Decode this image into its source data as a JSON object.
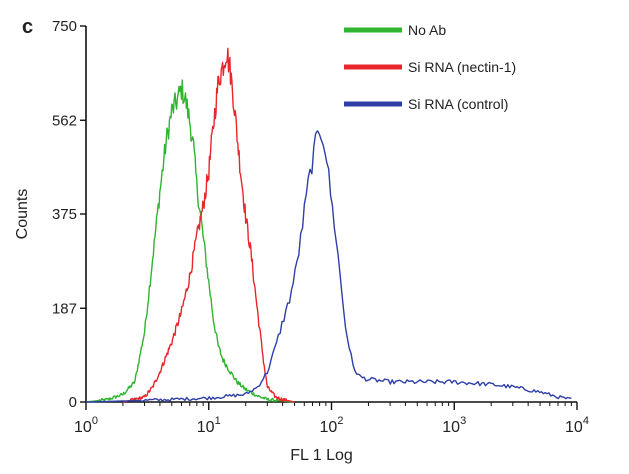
{
  "panel_label": "c",
  "chart_data": {
    "type": "line",
    "title": "",
    "xlabel": "FL 1 Log",
    "ylabel": "Counts",
    "x_scale": "log",
    "xlim": [
      1,
      10000
    ],
    "ylim": [
      0,
      750
    ],
    "x_ticks": [
      {
        "value": 1,
        "base": "10",
        "exp": "0"
      },
      {
        "value": 10,
        "base": "10",
        "exp": "1"
      },
      {
        "value": 100,
        "base": "10",
        "exp": "2"
      },
      {
        "value": 1000,
        "base": "10",
        "exp": "3"
      },
      {
        "value": 10000,
        "base": "10",
        "exp": "4"
      }
    ],
    "y_ticks": [
      0,
      187,
      375,
      562,
      750
    ],
    "legend_position": "top-right",
    "grid": false,
    "series": [
      {
        "name": "No Ab",
        "color": "#2fb52f",
        "x": [
          1,
          1.5,
          2,
          2.5,
          3,
          3.5,
          4,
          4.5,
          5,
          5.5,
          6,
          6.5,
          7,
          7.5,
          8,
          9,
          10,
          11,
          12,
          13,
          15,
          17,
          20,
          25,
          30,
          40,
          50
        ],
        "y": [
          0,
          5,
          15,
          40,
          140,
          290,
          420,
          520,
          580,
          600,
          625,
          600,
          560,
          510,
          430,
          330,
          240,
          160,
          110,
          85,
          60,
          40,
          25,
          12,
          5,
          2,
          0
        ]
      },
      {
        "name": "Si RNA (nectin-1)",
        "color": "#e8262c",
        "x": [
          2,
          2.5,
          3,
          3.5,
          4,
          5,
          6,
          7,
          8,
          9,
          10,
          11,
          12,
          13,
          14,
          15,
          16,
          18,
          20,
          22,
          25,
          28,
          30,
          35,
          40,
          50
        ],
        "y": [
          0,
          5,
          10,
          30,
          60,
          120,
          180,
          250,
          330,
          390,
          460,
          560,
          640,
          670,
          700,
          660,
          600,
          470,
          370,
          300,
          180,
          80,
          30,
          10,
          5,
          0
        ]
      },
      {
        "name": "Si RNA (control)",
        "color": "#2e3fa8",
        "x": [
          1,
          2,
          5,
          10,
          20,
          25,
          30,
          35,
          40,
          45,
          50,
          55,
          60,
          65,
          70,
          75,
          80,
          85,
          90,
          100,
          110,
          120,
          130,
          150,
          170,
          200,
          300,
          500,
          1000,
          2000,
          3000,
          5000,
          7000,
          9000
        ],
        "y": [
          0,
          2,
          5,
          8,
          15,
          30,
          60,
          110,
          160,
          200,
          250,
          310,
          380,
          440,
          480,
          520,
          545,
          530,
          500,
          400,
          320,
          230,
          150,
          70,
          50,
          45,
          40,
          40,
          40,
          35,
          30,
          20,
          10,
          5
        ]
      }
    ]
  }
}
